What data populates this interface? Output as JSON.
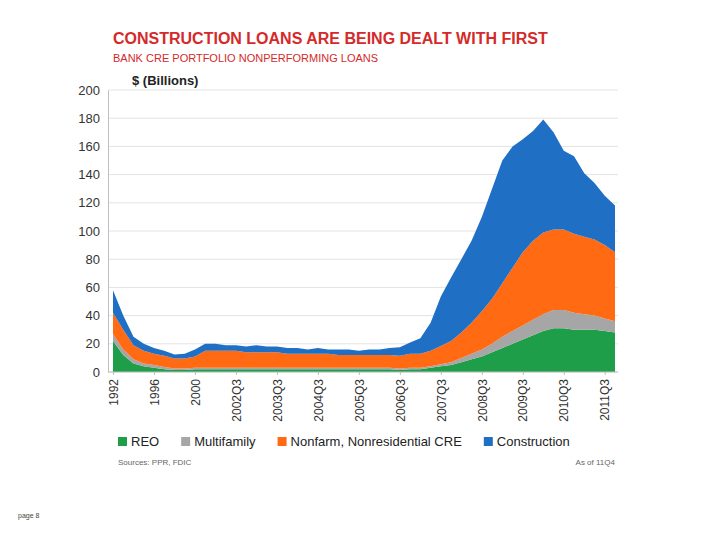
{
  "chart_data": {
    "type": "area",
    "title": "CONSTRUCTION LOANS ARE BEING DEALT WITH FIRST",
    "subtitle": "BANK CRE PORTFOLIO NONPERFORMING LOANS",
    "y_label": "$ (Billions)",
    "source": "Sources: PPR, FDIC",
    "note": "As of 11Q4",
    "page": "page 8",
    "stacked": true,
    "grid": true,
    "legend": "bottom",
    "categories": [
      "1992",
      null,
      null,
      null,
      "1996",
      null,
      null,
      null,
      "2000",
      null,
      null,
      null,
      "2002Q3",
      null,
      null,
      null,
      "2003Q3",
      null,
      null,
      null,
      "2004Q3",
      null,
      null,
      null,
      "2005Q3",
      null,
      null,
      null,
      "2006Q3",
      null,
      null,
      null,
      "2007Q3",
      null,
      null,
      null,
      "2008Q3",
      null,
      null,
      null,
      "2009Q3",
      null,
      null,
      null,
      "2010Q3",
      null,
      null,
      null,
      "2011Q3",
      null
    ],
    "ylim": [
      0,
      200
    ],
    "yticks": [
      0,
      20,
      40,
      60,
      80,
      100,
      120,
      140,
      160,
      180,
      200
    ],
    "series": [
      {
        "name": "REO",
        "color": "#1e9e48",
        "values": [
          22,
          12,
          6,
          4,
          3,
          2,
          1.5,
          1.5,
          2,
          2,
          2,
          2,
          2,
          2,
          2,
          2,
          2,
          2,
          2,
          2,
          2,
          2,
          2,
          2,
          2,
          2,
          2,
          2,
          1.5,
          2,
          2,
          3,
          4,
          5,
          7,
          9,
          11,
          14,
          17,
          20,
          23,
          26,
          29,
          31,
          31,
          30,
          30,
          30,
          29,
          28
        ]
      },
      {
        "name": "Multifamily",
        "color": "#a6a6a6",
        "values": [
          5,
          4,
          3,
          2,
          2,
          1.5,
          1,
          1,
          1,
          1,
          1,
          1,
          1,
          1,
          1,
          1,
          1,
          1,
          1,
          1,
          1,
          1,
          1,
          1,
          1,
          1,
          1,
          1,
          1,
          1,
          1,
          1,
          1.5,
          2,
          3,
          4,
          5,
          6,
          8,
          9,
          10,
          11,
          12,
          13,
          13,
          12,
          11,
          10,
          9,
          8
        ]
      },
      {
        "name": "Nonfarm, Nonresidential CRE",
        "color": "#ff6a13",
        "values": [
          15,
          14,
          10,
          9,
          8,
          8,
          7,
          7,
          8,
          12,
          12,
          12,
          12,
          11,
          11,
          11,
          11,
          10,
          10,
          10,
          10,
          10,
          9,
          9,
          9,
          9,
          9,
          9,
          9,
          10,
          10,
          11,
          13,
          15,
          18,
          22,
          27,
          32,
          38,
          45,
          52,
          56,
          58,
          57,
          57,
          56,
          55,
          54,
          52,
          49
        ]
      },
      {
        "name": "Construction",
        "color": "#1f6fc5",
        "values": [
          16,
          10,
          6,
          5,
          4,
          3.5,
          3,
          3.5,
          5,
          5,
          5,
          4,
          4,
          4,
          5,
          4,
          4,
          4,
          4,
          3,
          4,
          3,
          4,
          4,
          3,
          4,
          4,
          5,
          6,
          8,
          11,
          20,
          35,
          45,
          52,
          58,
          67,
          78,
          87,
          86,
          80,
          78,
          80,
          69,
          56,
          55,
          45,
          40,
          35,
          33
        ]
      }
    ]
  }
}
